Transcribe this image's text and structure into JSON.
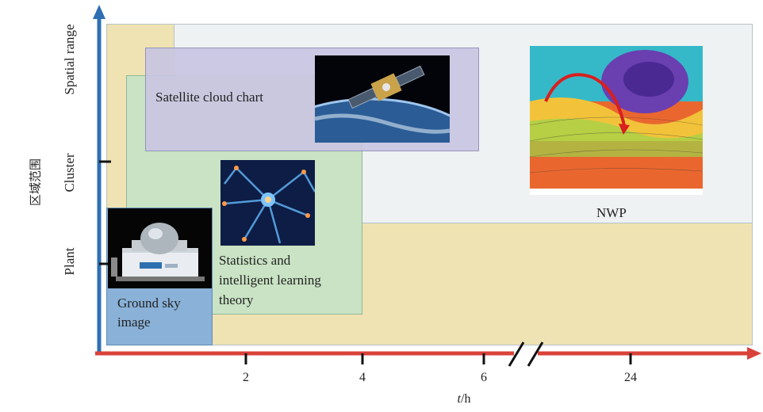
{
  "y_axis": {
    "title": "区域范围",
    "levels": [
      "Plant",
      "Cluster",
      "Spatial range"
    ]
  },
  "x_axis": {
    "title_italic": "t",
    "title_unit": "/h",
    "ticks": [
      "2",
      "4",
      "6",
      "24"
    ]
  },
  "regions": {
    "ground": "Ground sky image",
    "ground_lines": [
      "Ground sky",
      "image"
    ],
    "stats": "Statistics and intelligent learning theory",
    "stats_lines": [
      "Statistics and",
      "intelligent learning",
      "theory"
    ],
    "satellite": "Satellite cloud chart",
    "nwp": "NWP"
  },
  "colors": {
    "y_axis": "#2f6fb3",
    "x_axis": "#d9423a",
    "tan": "#efe3b3",
    "green": "#c9e3c4",
    "lavender": "#c9c6e2",
    "blue": "#8ab2d8",
    "light_panel": "#eef2f2"
  },
  "images": [
    "pyranometer-icon",
    "neural-network-icon",
    "satellite-icon",
    "weather-map-icon"
  ]
}
